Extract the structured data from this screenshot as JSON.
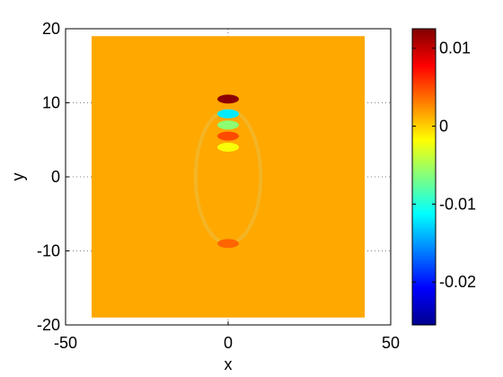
{
  "chart_data": {
    "type": "heatmap",
    "title": "",
    "xlabel": "x",
    "ylabel": "y",
    "xlim": [
      -50,
      50
    ],
    "ylim": [
      -20,
      20
    ],
    "x_ticks": [
      "-50",
      "0",
      "50"
    ],
    "y_ticks": [
      "-20",
      "-10",
      "0",
      "10",
      "20"
    ],
    "grid": "dotted",
    "field_extent": {
      "x": [
        -42,
        42
      ],
      "y": [
        -19,
        19
      ]
    },
    "baseline_value": 0.0015,
    "features": [
      {
        "x": 0,
        "y": 10.5,
        "value": 0.012
      },
      {
        "x": 0,
        "y": 8.5,
        "value": -0.012
      },
      {
        "x": 0,
        "y": 7.0,
        "value": -0.006
      },
      {
        "x": 0,
        "y": 5.5,
        "value": 0.005
      },
      {
        "x": 0,
        "y": 4.0,
        "value": -0.002
      },
      {
        "x": 0,
        "y": -9.0,
        "value": 0.004
      }
    ],
    "colorbar": {
      "colormap": "jet",
      "range": [
        -0.0255,
        0.0125
      ],
      "ticks": [
        "0.01",
        "0",
        "-0.01",
        "-0.02"
      ],
      "tick_values": [
        0.01,
        0,
        -0.01,
        -0.02
      ]
    }
  }
}
